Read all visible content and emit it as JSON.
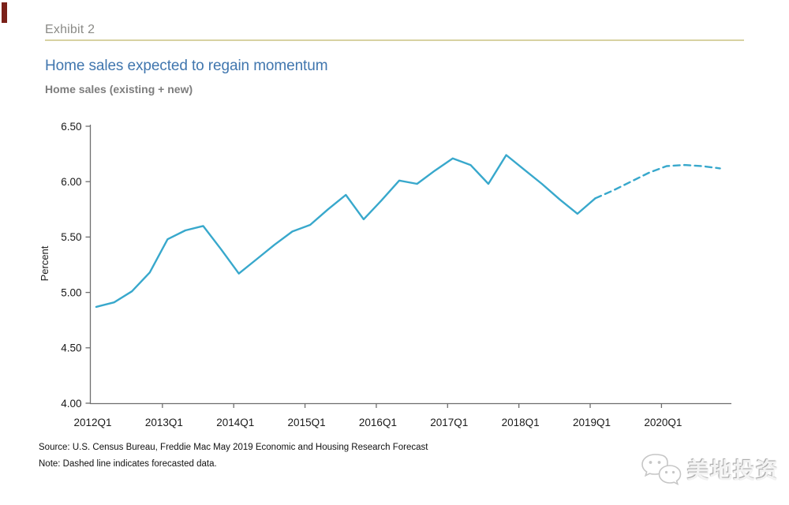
{
  "exhibit": {
    "label": "Exhibit 2"
  },
  "chart_header": {
    "title": "Home sales expected to regain momentum",
    "subtitle": "Home sales (existing + new)"
  },
  "footnotes": {
    "source": "Source: U.S. Census Bureau, Freddie Mac May 2019 Economic and Housing Research Forecast",
    "note": "Note: Dashed line indicates forecasted data."
  },
  "watermark": {
    "icon": "wechat-icon",
    "text": "美地投资"
  },
  "colors": {
    "line": "#38a8cc",
    "title_blue": "#4076ae",
    "exhibit_gray": "#8b8b87",
    "exhibit_rule_beige": "#d8d2a2",
    "subtitle_gray": "#7d7d7d",
    "axis_gray": "#6e6e6e",
    "tick_text": "#1a1a1a",
    "corner_marker_red": "#7a2019"
  },
  "chart_data": {
    "type": "line",
    "title": "Home sales expected to regain momentum",
    "subtitle": "Home sales (existing + new)",
    "xlabel": "",
    "ylabel": "Percent",
    "ylim": [
      4.0,
      6.5
    ],
    "grid": false,
    "legend": "none",
    "y_tick_labels": [
      "6.50",
      "6.00",
      "5.50",
      "5.00",
      "4.50",
      "4.00"
    ],
    "x_tick_labels": [
      "2012Q1",
      "2013Q1",
      "2014Q1",
      "2015Q1",
      "2016Q1",
      "2017Q1",
      "2018Q1",
      "2019Q1",
      "2020Q1"
    ],
    "categories": [
      "2012Q1",
      "2012Q2",
      "2012Q3",
      "2012Q4",
      "2013Q1",
      "2013Q2",
      "2013Q3",
      "2013Q4",
      "2014Q1",
      "2014Q2",
      "2014Q3",
      "2014Q4",
      "2015Q1",
      "2015Q2",
      "2015Q3",
      "2015Q4",
      "2016Q1",
      "2016Q2",
      "2016Q3",
      "2016Q4",
      "2017Q1",
      "2017Q2",
      "2017Q3",
      "2017Q4",
      "2018Q1",
      "2018Q2",
      "2018Q3",
      "2018Q4",
      "2019Q1",
      "2019Q2",
      "2019Q3",
      "2019Q4",
      "2020Q1",
      "2020Q2",
      "2020Q3",
      "2020Q4"
    ],
    "series": [
      {
        "name": "Home sales (existing + new)",
        "values": [
          4.87,
          4.91,
          5.01,
          5.18,
          5.48,
          5.56,
          5.6,
          5.39,
          5.17,
          5.3,
          5.43,
          5.55,
          5.61,
          5.75,
          5.88,
          5.66,
          5.83,
          6.01,
          5.98,
          6.1,
          6.21,
          6.15,
          5.98,
          6.24,
          6.11,
          5.98,
          5.84,
          5.71,
          5.85,
          5.92,
          6.0,
          6.08,
          6.14,
          6.15,
          6.14,
          6.12
        ],
        "forecast_start_index": 28,
        "history_style": "solid",
        "forecast_style": "dashed"
      }
    ]
  }
}
